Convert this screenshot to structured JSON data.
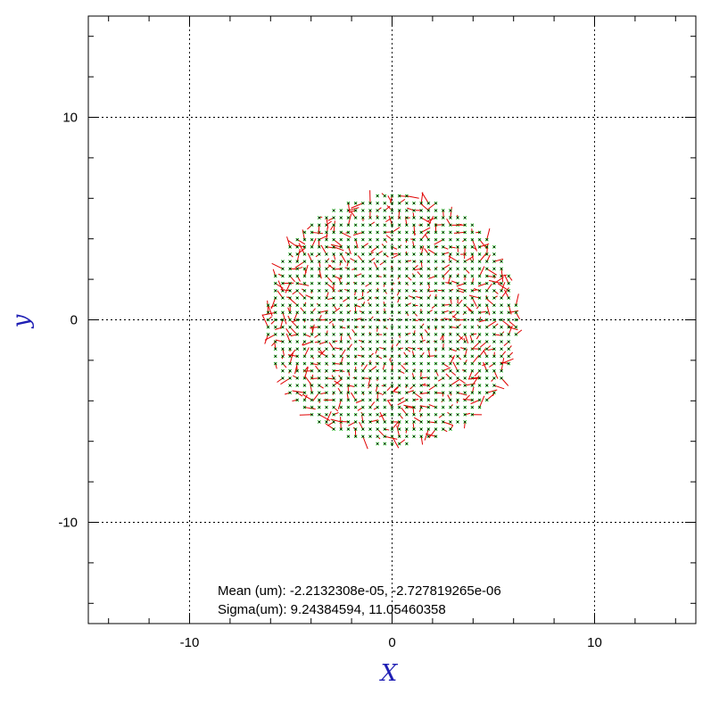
{
  "chart_data": {
    "type": "scatter",
    "title": "",
    "xlabel": "X",
    "ylabel": "y",
    "xlim": [
      -15,
      15
    ],
    "ylim": [
      -15,
      15
    ],
    "grid": true,
    "x_ticks": [
      -10,
      0,
      10
    ],
    "y_ticks": [
      -10,
      0,
      10
    ],
    "x_tick_labels": [
      "-10",
      "0",
      "10"
    ],
    "y_tick_labels": [
      "-10",
      "0",
      "10"
    ],
    "grid_lines": [
      -10,
      0,
      10
    ],
    "sample_region": {
      "shape": "disk",
      "center": [
        0,
        0
      ],
      "radius": 6.2,
      "grid_spacing": 0.36
    },
    "series": [
      {
        "marker": "dot",
        "color": "#000000"
      },
      {
        "marker": "cross",
        "color": "#00b400"
      },
      {
        "marker": "residual-vector",
        "color": "#e00000"
      }
    ],
    "annotations": {
      "mean_line": "Mean (um): -2.2132308e-05, -2.727819265e-06",
      "sigma_line": "Sigma(um): 9.24384594, 11.05460358"
    }
  }
}
